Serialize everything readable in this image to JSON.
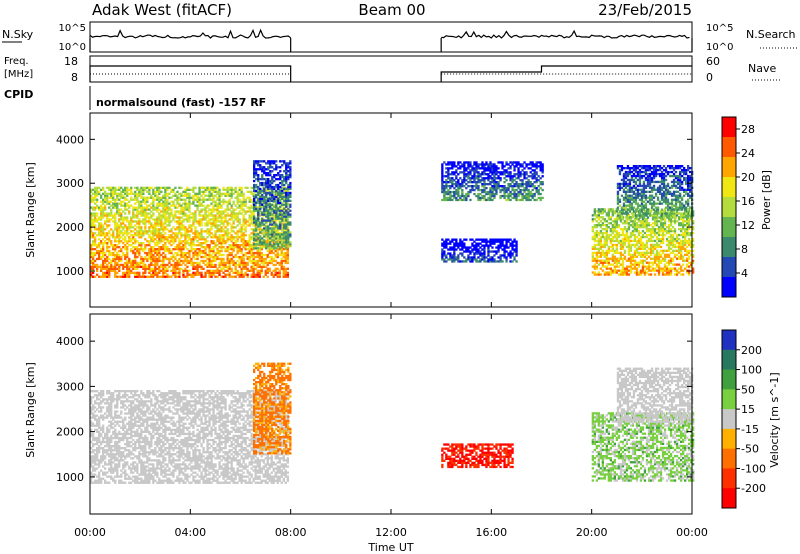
{
  "header": {
    "station": "Adak West (fitACF)",
    "beam": "Beam 00",
    "date": "23/Feb/2015"
  },
  "strips": {
    "nsky_label": "N.Sky",
    "nsearch_label": "N.Search",
    "nsky_ticks": [
      "10^5",
      "10^0"
    ],
    "nsearch_ticks": [
      "10^5",
      "10^0"
    ],
    "freq_label_line1": "Freq.",
    "freq_label_line2": "[MHz]",
    "freq_ticks": [
      "18",
      "8"
    ],
    "nave_label": "Nave",
    "nave_ticks": [
      "60",
      "0"
    ],
    "cpid_label": "CPID",
    "cpid_text": "normalsound (fast) -157 RF"
  },
  "chart_data": [
    {
      "type": "heatmap",
      "name": "power",
      "ylabel": "Slant Range [km]",
      "xlabel": "Time UT",
      "x_ticks": [
        "00:00",
        "04:00",
        "08:00",
        "12:00",
        "16:00",
        "20:00",
        "00:00"
      ],
      "x_range_hours": [
        0,
        24
      ],
      "y_ticks": [
        1000,
        2000,
        3000,
        4000
      ],
      "ylim": [
        180,
        4600
      ],
      "colorbar_label": "Power [dB]",
      "colorbar_ticks": [
        4,
        8,
        12,
        16,
        20,
        24,
        28
      ],
      "colorbar_range": [
        0,
        30
      ],
      "colors": [
        "#0000ff",
        "#2448b4",
        "#3c8a6e",
        "#64b450",
        "#b4dc3c",
        "#f0e614",
        "#ffa500",
        "#ff5a00",
        "#ff0000"
      ],
      "regions": [
        {
          "t_start": 0.0,
          "t_end": 7.9,
          "r_min": 850,
          "r_max": 2900,
          "level": 24
        },
        {
          "t_start": 6.5,
          "t_end": 8.0,
          "r_min": 1500,
          "r_max": 3500,
          "level": 12
        },
        {
          "t_start": 14.0,
          "t_end": 17.0,
          "r_min": 1200,
          "r_max": 1700,
          "level": 6
        },
        {
          "t_start": 14.0,
          "t_end": 18.0,
          "r_min": 2600,
          "r_max": 3500,
          "level": 10
        },
        {
          "t_start": 20.0,
          "t_end": 24.0,
          "r_min": 900,
          "r_max": 2400,
          "level": 22
        },
        {
          "t_start": 21.0,
          "t_end": 24.0,
          "r_min": 2200,
          "r_max": 3400,
          "level": 12
        }
      ]
    },
    {
      "type": "heatmap",
      "name": "velocity",
      "ylabel": "Slant Range [km]",
      "xlabel": "Time UT",
      "x_ticks": [
        "00:00",
        "04:00",
        "08:00",
        "12:00",
        "16:00",
        "20:00",
        "00:00"
      ],
      "x_range_hours": [
        0,
        24
      ],
      "y_ticks": [
        1000,
        2000,
        3000,
        4000
      ],
      "ylim": [
        180,
        4600
      ],
      "colorbar_label": "Velocity [m s^-1]",
      "colorbar_ticks": [
        200,
        100,
        50,
        15,
        -15,
        -50,
        -100,
        -200
      ],
      "colors": [
        "#2030c0",
        "#287860",
        "#40a040",
        "#78d040",
        "#c8c8c8",
        "#ffb000",
        "#ff7000",
        "#ff3000",
        "#ff0000"
      ],
      "regions": [
        {
          "t_start": 0.0,
          "t_end": 7.9,
          "r_min": 850,
          "r_max": 2900,
          "velocity": 0
        },
        {
          "t_start": 6.5,
          "t_end": 8.0,
          "r_min": 1500,
          "r_max": 3500,
          "velocity": -40
        },
        {
          "t_start": 14.0,
          "t_end": 16.8,
          "r_min": 1200,
          "r_max": 1700,
          "velocity": -150
        },
        {
          "t_start": 20.0,
          "t_end": 24.0,
          "r_min": 900,
          "r_max": 2400,
          "velocity": 20
        },
        {
          "t_start": 21.0,
          "t_end": 24.0,
          "r_min": 2200,
          "r_max": 3400,
          "velocity": 0
        }
      ]
    }
  ]
}
